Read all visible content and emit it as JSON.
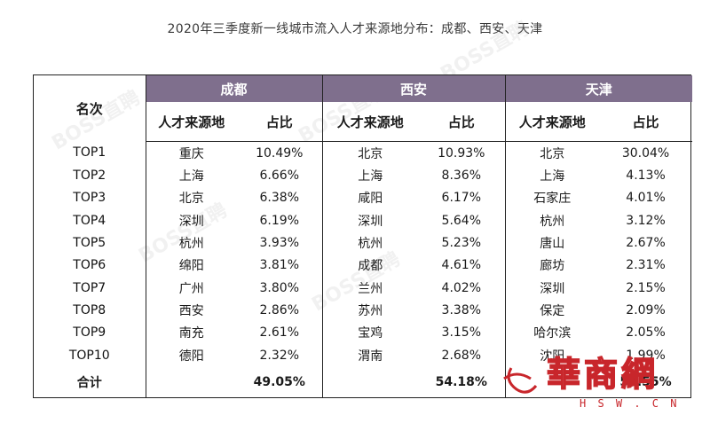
{
  "title": "2020年三季度新一线城市流入人才来源地分布：成都、西安、天津",
  "table": {
    "rank_header": "名次",
    "cities": [
      "成都",
      "西安",
      "天津"
    ],
    "sub_headers": [
      "人才来源地",
      "占比"
    ],
    "rows": [
      {
        "rank": "TOP1",
        "cells": [
          [
            "重庆",
            "10.49%"
          ],
          [
            "北京",
            "10.93%"
          ],
          [
            "北京",
            "30.04%"
          ]
        ]
      },
      {
        "rank": "TOP2",
        "cells": [
          [
            "上海",
            "6.66%"
          ],
          [
            "上海",
            "8.36%"
          ],
          [
            "上海",
            "4.13%"
          ]
        ]
      },
      {
        "rank": "TOP3",
        "cells": [
          [
            "北京",
            "6.38%"
          ],
          [
            "咸阳",
            "6.17%"
          ],
          [
            "石家庄",
            "4.01%"
          ]
        ]
      },
      {
        "rank": "TOP4",
        "cells": [
          [
            "深圳",
            "6.19%"
          ],
          [
            "深圳",
            "5.64%"
          ],
          [
            "杭州",
            "3.12%"
          ]
        ]
      },
      {
        "rank": "TOP5",
        "cells": [
          [
            "杭州",
            "3.93%"
          ],
          [
            "杭州",
            "5.23%"
          ],
          [
            "唐山",
            "2.67%"
          ]
        ]
      },
      {
        "rank": "TOP6",
        "cells": [
          [
            "绵阳",
            "3.81%"
          ],
          [
            "成都",
            "4.61%"
          ],
          [
            "廊坊",
            "2.31%"
          ]
        ]
      },
      {
        "rank": "TOP7",
        "cells": [
          [
            "广州",
            "3.80%"
          ],
          [
            "兰州",
            "4.02%"
          ],
          [
            "深圳",
            "2.15%"
          ]
        ]
      },
      {
        "rank": "TOP8",
        "cells": [
          [
            "西安",
            "2.86%"
          ],
          [
            "苏州",
            "3.38%"
          ],
          [
            "保定",
            "2.09%"
          ]
        ]
      },
      {
        "rank": "TOP9",
        "cells": [
          [
            "南充",
            "2.61%"
          ],
          [
            "宝鸡",
            "3.15%"
          ],
          [
            "哈尔滨",
            "2.05%"
          ]
        ]
      },
      {
        "rank": "TOP10",
        "cells": [
          [
            "德阳",
            "2.32%"
          ],
          [
            "渭南",
            "2.68%"
          ],
          [
            "沈阳",
            "1.99%"
          ]
        ]
      }
    ],
    "total_label": "合计",
    "totals": [
      "49.05%",
      "54.18%",
      "54.55%"
    ]
  },
  "watermark_text": "BOSS直聘",
  "logo": {
    "text": "華商網",
    "url_text": "H S W . C N"
  },
  "colors": {
    "header_bg": "#7f6f8d",
    "header_text": "#ffffff",
    "logo_red": "#c8262b"
  }
}
